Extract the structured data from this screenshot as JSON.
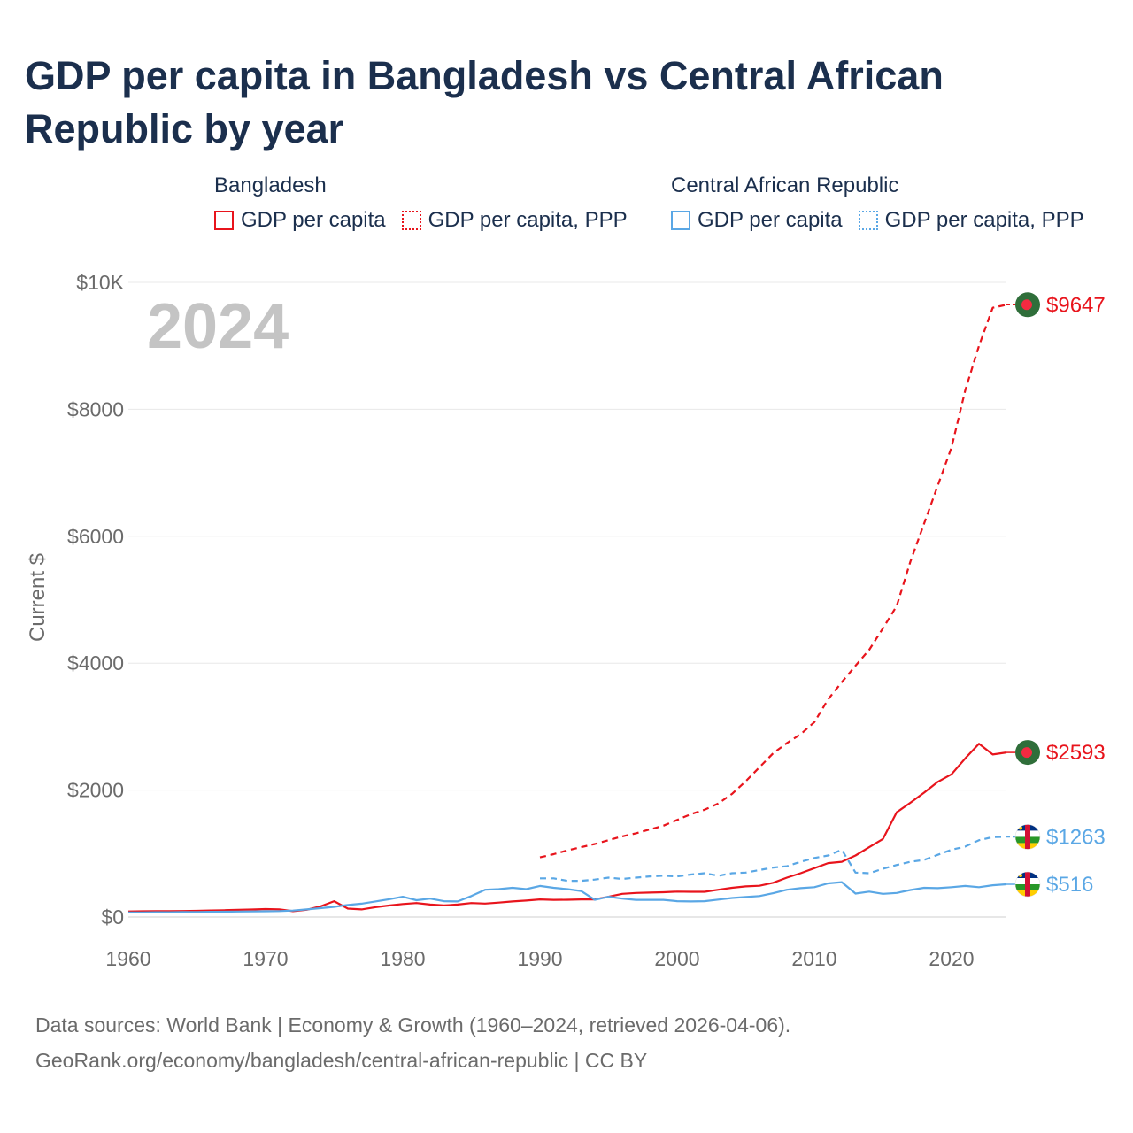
{
  "title": "GDP per capita in Bangladesh vs Central African Republic by year",
  "legend": {
    "groups": [
      {
        "country": "Bangladesh",
        "color": "#e8141c",
        "items": [
          {
            "label": "GDP per capita",
            "style": "solid"
          },
          {
            "label": "GDP per capita, PPP",
            "style": "dotted"
          }
        ]
      },
      {
        "country": "Central African Republic",
        "color": "#5aa7e5",
        "items": [
          {
            "label": "GDP per capita",
            "style": "solid"
          },
          {
            "label": "GDP per capita, PPP",
            "style": "dotted"
          }
        ]
      }
    ]
  },
  "footer": {
    "line1": "Data sources: World Bank | Economy & Growth (1960–2024, retrieved 2026-04-06).",
    "line2": "GeoRank.org/economy/bangladesh/central-african-republic | CC BY"
  },
  "chart_data": {
    "type": "line",
    "year_label": "2024",
    "ylabel": "Current $",
    "xlim": [
      1960,
      2024
    ],
    "ylim": [
      0,
      10000
    ],
    "x_ticks": [
      1960,
      1970,
      1980,
      1990,
      2000,
      2010,
      2020
    ],
    "x_tick_labels": [
      "1960",
      "1970",
      "1980",
      "1990",
      "2000",
      "2010",
      "2020"
    ],
    "y_ticks": [
      0,
      2000,
      4000,
      6000,
      8000,
      10000
    ],
    "y_tick_labels": [
      "$0",
      "$2000",
      "$4000",
      "$6000",
      "$8000",
      "$10K"
    ],
    "grid": true,
    "series": [
      {
        "name": "Bangladesh GDP per capita",
        "color": "#e8141c",
        "dash": "solid",
        "end_label": "$2593",
        "end_value": 2593,
        "marker": "bangladesh-flag",
        "x": [
          1960,
          1961,
          1962,
          1963,
          1964,
          1965,
          1966,
          1967,
          1968,
          1969,
          1970,
          1971,
          1972,
          1973,
          1974,
          1975,
          1976,
          1977,
          1978,
          1979,
          1980,
          1981,
          1982,
          1983,
          1984,
          1985,
          1986,
          1987,
          1988,
          1989,
          1990,
          1991,
          1992,
          1993,
          1994,
          1995,
          1996,
          1997,
          1998,
          1999,
          2000,
          2001,
          2002,
          2003,
          2004,
          2005,
          2006,
          2007,
          2008,
          2009,
          2010,
          2011,
          2012,
          2013,
          2014,
          2015,
          2016,
          2017,
          2018,
          2019,
          2020,
          2021,
          2022,
          2023,
          2024
        ],
        "values": [
          88,
          90,
          93,
          93,
          95,
          98,
          103,
          108,
          113,
          118,
          126,
          122,
          92,
          115,
          168,
          250,
          132,
          120,
          155,
          182,
          205,
          220,
          196,
          183,
          196,
          220,
          212,
          228,
          245,
          260,
          278,
          270,
          272,
          278,
          278,
          320,
          365,
          380,
          385,
          390,
          400,
          398,
          398,
          430,
          460,
          483,
          493,
          540,
          620,
          690,
          770,
          850,
          870,
          970,
          1100,
          1230,
          1650,
          1800,
          1960,
          2130,
          2250,
          2500,
          2730,
          2560,
          2593
        ]
      },
      {
        "name": "Bangladesh GDP per capita, PPP",
        "color": "#e8141c",
        "dash": "dashed",
        "end_label": "$9647",
        "end_value": 9647,
        "marker": "bangladesh-flag",
        "x": [
          1990,
          1991,
          1992,
          1993,
          1994,
          1995,
          1996,
          1997,
          1998,
          1999,
          2000,
          2001,
          2002,
          2003,
          2004,
          2005,
          2006,
          2007,
          2008,
          2009,
          2010,
          2011,
          2012,
          2013,
          2014,
          2015,
          2016,
          2017,
          2018,
          2019,
          2020,
          2021,
          2022,
          2023,
          2024
        ],
        "values": [
          940,
          990,
          1050,
          1100,
          1150,
          1210,
          1270,
          1320,
          1380,
          1440,
          1530,
          1620,
          1690,
          1790,
          1940,
          2140,
          2360,
          2580,
          2740,
          2880,
          3070,
          3430,
          3700,
          3960,
          4210,
          4550,
          4900,
          5600,
          6200,
          6800,
          7400,
          8300,
          9000,
          9600,
          9647
        ]
      },
      {
        "name": "Central African Republic GDP per capita",
        "color": "#5aa7e5",
        "dash": "solid",
        "end_label": "$516",
        "end_value": 516,
        "marker": "car-flag",
        "x": [
          1960,
          1961,
          1962,
          1963,
          1964,
          1965,
          1966,
          1967,
          1968,
          1969,
          1970,
          1971,
          1972,
          1973,
          1974,
          1975,
          1976,
          1977,
          1978,
          1979,
          1980,
          1981,
          1982,
          1983,
          1984,
          1985,
          1986,
          1987,
          1988,
          1989,
          1990,
          1991,
          1992,
          1993,
          1994,
          1995,
          1996,
          1997,
          1998,
          1999,
          2000,
          2001,
          2002,
          2003,
          2004,
          2005,
          2006,
          2007,
          2008,
          2009,
          2010,
          2011,
          2012,
          2013,
          2014,
          2015,
          2016,
          2017,
          2018,
          2019,
          2020,
          2021,
          2022,
          2023,
          2024
        ],
        "values": [
          72,
          73,
          75,
          76,
          78,
          80,
          82,
          84,
          86,
          88,
          90,
          94,
          102,
          120,
          140,
          160,
          190,
          210,
          245,
          280,
          320,
          265,
          290,
          250,
          245,
          330,
          430,
          440,
          460,
          440,
          490,
          460,
          440,
          410,
          270,
          320,
          290,
          270,
          270,
          270,
          250,
          245,
          250,
          275,
          300,
          315,
          330,
          375,
          430,
          455,
          470,
          530,
          550,
          370,
          400,
          365,
          380,
          425,
          460,
          455,
          470,
          490,
          470,
          500,
          516
        ]
      },
      {
        "name": "Central African Republic GDP per capita, PPP",
        "color": "#5aa7e5",
        "dash": "dashed",
        "end_label": "$1263",
        "end_value": 1263,
        "marker": "car-flag",
        "x": [
          1990,
          1991,
          1992,
          1993,
          1994,
          1995,
          1996,
          1997,
          1998,
          1999,
          2000,
          2001,
          2002,
          2003,
          2004,
          2005,
          2006,
          2007,
          2008,
          2009,
          2010,
          2011,
          2012,
          2013,
          2014,
          2015,
          2016,
          2017,
          2018,
          2019,
          2020,
          2021,
          2022,
          2023,
          2024
        ],
        "values": [
          610,
          610,
          570,
          570,
          590,
          620,
          600,
          620,
          640,
          650,
          640,
          670,
          690,
          650,
          690,
          700,
          740,
          780,
          800,
          870,
          930,
          970,
          1060,
          700,
          690,
          760,
          820,
          870,
          900,
          980,
          1060,
          1110,
          1210,
          1260,
          1263
        ]
      }
    ]
  }
}
